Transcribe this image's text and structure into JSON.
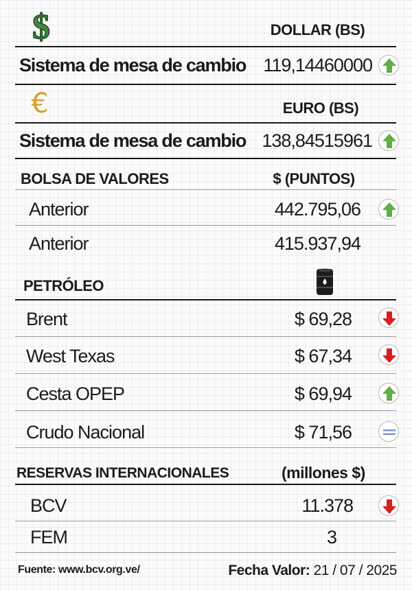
{
  "dollar": {
    "icon": "dollar-sign-icon",
    "currency_label": "DOLLAR (BS)",
    "rate_label": "Sistema de mesa de cambio",
    "rate_value": "119,14460000",
    "trend": "up"
  },
  "euro": {
    "icon": "euro-sign-icon",
    "currency_label": "EURO (BS)",
    "rate_label": "Sistema de mesa de cambio",
    "rate_value": "138,84515961",
    "trend": "up"
  },
  "bolsa": {
    "title": "BOLSA DE VALORES",
    "unit": "$ (PUNTOS)",
    "rows": [
      {
        "label": "Anterior",
        "value": "442.795,06",
        "trend": "up"
      },
      {
        "label": "Anterior",
        "value": "415.937,94",
        "trend": "none"
      }
    ]
  },
  "petroleo": {
    "title": "PETRÓLEO",
    "icon": "oil-barrel-icon",
    "rows": [
      {
        "label": "Brent",
        "value": "$ 69,28",
        "trend": "down"
      },
      {
        "label": "West Texas",
        "value": "$ 67,34",
        "trend": "down"
      },
      {
        "label": "Cesta OPEP",
        "value": "$ 69,94",
        "trend": "up"
      },
      {
        "label": "Crudo Nacional",
        "value": "$ 71,56",
        "trend": "equal"
      }
    ]
  },
  "reservas": {
    "title": "RESERVAS INTERNACIONALES",
    "unit": "(millones $)",
    "rows": [
      {
        "label": "BCV",
        "value": "11.378",
        "trend": "down"
      },
      {
        "label": "FEM",
        "value": "3",
        "trend": "none"
      }
    ]
  },
  "footer": {
    "source": "Fuente: www.bcv.org.ve/",
    "date_label": "Fecha Valor:",
    "date_value": "21 / 07 / 2025"
  },
  "colors": {
    "up": "#5fae46",
    "down": "#d81f1f",
    "equal": "#7b97cf",
    "dollar": "#3f8a3c",
    "euro": "#d8a12c"
  }
}
